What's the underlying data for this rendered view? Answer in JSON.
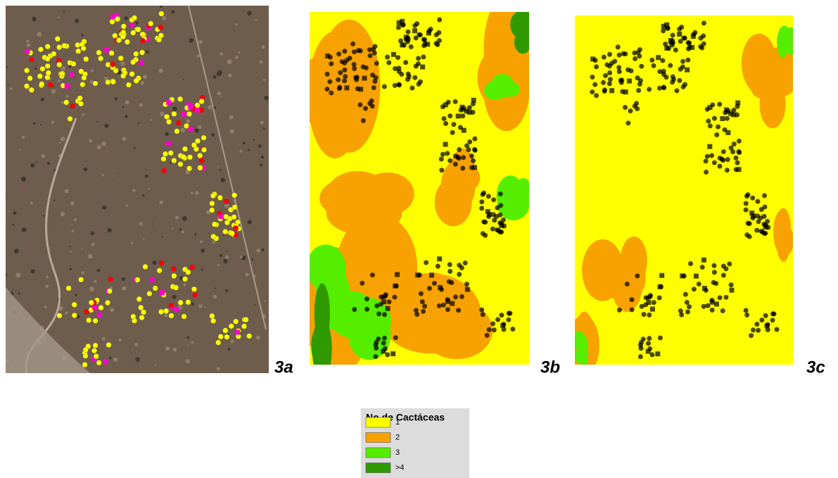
{
  "panels": [
    {
      "label": "3a"
    },
    {
      "label": "3b"
    },
    {
      "label": "3c"
    }
  ],
  "legend": {
    "title": "No de Cactáceas",
    "items": [
      {
        "label": "1",
        "color": "#ffff00"
      },
      {
        "label": "2",
        "color": "#f7a200"
      },
      {
        "label": "3",
        "color": "#55ee00"
      },
      {
        "label": ">4",
        "color": "#2e9a00"
      }
    ]
  }
}
